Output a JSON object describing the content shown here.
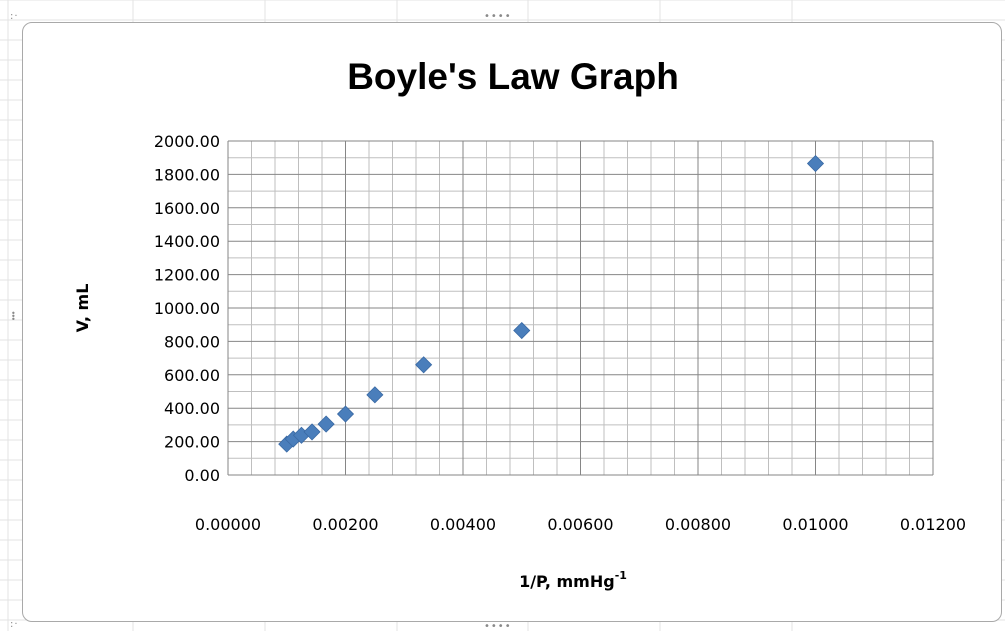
{
  "chart_data": {
    "type": "scatter",
    "title": "Boyle's Law Graph",
    "xlabel": "1/P, mmHg",
    "xlabel_superscript": "-1",
    "ylabel": "V, mL",
    "xlim": [
      0,
      0.012
    ],
    "ylim": [
      0,
      2000
    ],
    "x_ticks": [
      "0.00000",
      "0.00200",
      "0.00400",
      "0.00600",
      "0.00800",
      "0.01000",
      "0.01200"
    ],
    "y_ticks": [
      "0.00",
      "200.00",
      "400.00",
      "600.00",
      "800.00",
      "1000.00",
      "1200.00",
      "1400.00",
      "1600.00",
      "1800.00",
      "2000.00"
    ],
    "x_major_step": 0.002,
    "x_minor_step": 0.0004,
    "y_major_step": 200,
    "y_minor_step": 100,
    "grid": true,
    "legend": "none",
    "marker": "diamond",
    "marker_color": "#4a7ebb",
    "x": [
      0.001,
      0.00111,
      0.00125,
      0.00143,
      0.00167,
      0.002,
      0.0025,
      0.00333,
      0.005,
      0.01
    ],
    "y": [
      185,
      215,
      238,
      258,
      305,
      365,
      480,
      660,
      865,
      1865
    ]
  }
}
